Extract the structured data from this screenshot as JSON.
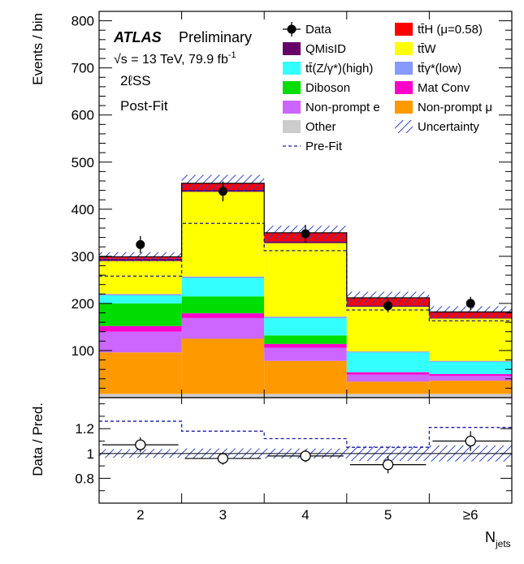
{
  "chart_data": {
    "type": "bar",
    "stacked": true,
    "annotations": {
      "experiment": "ATLAS",
      "status": "Preliminary",
      "energy_lumi": "√s = 13 TeV, 79.9 fb",
      "lumi_exponent": "-1",
      "channel": "2ℓSS",
      "fit_label": "Post-Fit"
    },
    "xlabel": "N",
    "xlabel_sub": "jets",
    "ylabel": "Events / bin",
    "ratio_ylabel": "Data / Pred.",
    "categories": [
      "2",
      "3",
      "4",
      "5",
      "≥6"
    ],
    "ylim": [
      0,
      820
    ],
    "yticks": [
      100,
      200,
      300,
      400,
      500,
      600,
      700,
      800
    ],
    "ratio_ylim": [
      0.6,
      1.45
    ],
    "ratio_yticks": [
      "0.8",
      "1",
      "1.2"
    ],
    "ratio_ytick_values": [
      0.8,
      1.0,
      1.2
    ],
    "series": [
      {
        "name": "Other",
        "color": "#cccccc",
        "values": [
          8,
          8,
          8,
          8,
          8
        ]
      },
      {
        "name": "Non-prompt μ",
        "color": "#ff9900",
        "values": [
          88,
          117,
          70,
          26,
          28
        ]
      },
      {
        "name": "Non-prompt e",
        "color": "#cc66ff",
        "values": [
          44,
          44,
          28,
          15,
          10
        ]
      },
      {
        "name": "Mat Conv",
        "color": "#ff00cc",
        "values": [
          12,
          10,
          8,
          5,
          4
        ]
      },
      {
        "name": "Diboson",
        "color": "#00dd00",
        "values": [
          48,
          36,
          18,
          0,
          0
        ]
      },
      {
        "name": "tt̄(Z/γ*)(high)",
        "color": "#33ffff",
        "values": [
          17,
          39,
          37,
          42,
          26
        ]
      },
      {
        "name": "tt̄γ*(low)",
        "color": "#8899ff",
        "values": [
          3,
          3,
          3,
          2,
          2
        ]
      },
      {
        "name": "tt̄W",
        "color": "#ffff00",
        "values": [
          70,
          180,
          156,
          95,
          90
        ]
      },
      {
        "name": "QMisID",
        "color": "#660066",
        "values": [
          5,
          4,
          4,
          3,
          2
        ]
      },
      {
        "name": "tt̄H (μ=0.58)",
        "color": "#ff0000",
        "values": [
          4,
          14,
          18,
          16,
          12
        ]
      }
    ],
    "legend": [
      {
        "label": "Data",
        "type": "data"
      },
      {
        "label": "tt̄H (μ=0.58)",
        "type": "fill",
        "color": "#ff0000"
      },
      {
        "label": "QMisID",
        "type": "fill",
        "color": "#660066"
      },
      {
        "label": "tt̄W",
        "type": "fill",
        "color": "#ffff00"
      },
      {
        "label": "tt̄(Z/γ*)(high)",
        "type": "fill",
        "color": "#33ffff"
      },
      {
        "label": "tt̄γ*(low)",
        "type": "fill",
        "color": "#8899ff"
      },
      {
        "label": "Diboson",
        "type": "fill",
        "color": "#00dd00"
      },
      {
        "label": "Mat Conv",
        "type": "fill",
        "color": "#ff00cc"
      },
      {
        "label": "Non-prompt e",
        "type": "fill",
        "color": "#cc66ff"
      },
      {
        "label": "Non-prompt μ",
        "type": "fill",
        "color": "#ff9900"
      },
      {
        "label": "Other",
        "type": "fill",
        "color": "#cccccc"
      },
      {
        "label": "Uncertainty",
        "type": "hatch"
      },
      {
        "label": "Pre-Fit",
        "type": "dashed"
      }
    ],
    "data": {
      "values": [
        325,
        438,
        348,
        195,
        200
      ],
      "errors": [
        18,
        21,
        19,
        14,
        14
      ]
    },
    "uncertainty": [
      10,
      18,
      15,
      13,
      12
    ],
    "prefit": [
      258,
      370,
      312,
      186,
      163
    ],
    "ratio": {
      "values": [
        1.07,
        0.96,
        0.98,
        0.91,
        1.1
      ],
      "errors": [
        0.06,
        0.05,
        0.05,
        0.07,
        0.08
      ],
      "prefit_ratio": [
        1.26,
        1.18,
        1.12,
        1.05,
        1.21
      ],
      "band": [
        0.035,
        0.04,
        0.04,
        0.06,
        0.065
      ]
    }
  }
}
